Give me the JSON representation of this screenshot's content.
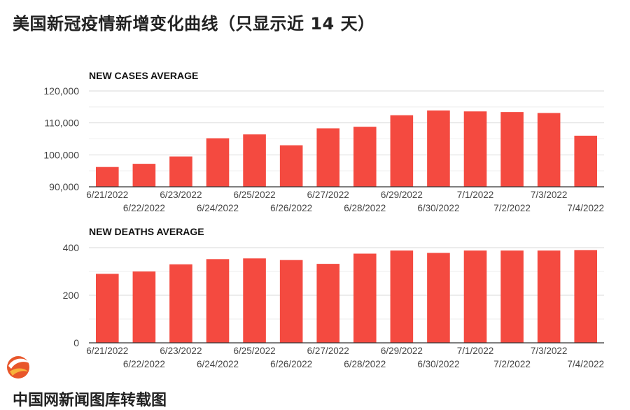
{
  "page": {
    "title": "美国新冠疫情新增变化曲线（只显示近 14 天）",
    "bottom_text": "中国网新闻图库转载图"
  },
  "colors": {
    "bar": "#f44a40",
    "grid": "#dddddd",
    "axis": "#333333"
  },
  "chart_data": [
    {
      "type": "bar",
      "title": "NEW CASES AVERAGE",
      "categories": [
        "6/21/2022",
        "6/22/2022",
        "6/23/2022",
        "6/24/2022",
        "6/25/2022",
        "6/26/2022",
        "6/27/2022",
        "6/28/2022",
        "6/29/2022",
        "6/30/2022",
        "7/1/2022",
        "7/2/2022",
        "7/3/2022",
        "7/4/2022"
      ],
      "values": [
        96200,
        97200,
        99500,
        105200,
        106400,
        103000,
        108300,
        108800,
        112400,
        113900,
        113600,
        113400,
        113100,
        106000
      ],
      "ylim": [
        90000,
        120000
      ],
      "yticks": [
        90000,
        100000,
        110000,
        120000
      ],
      "ytick_labels": [
        "90,000",
        "100,000",
        "110,000",
        "120,000"
      ],
      "grid": true
    },
    {
      "type": "bar",
      "title": "NEW DEATHS AVERAGE",
      "categories": [
        "6/21/2022",
        "6/22/2022",
        "6/23/2022",
        "6/24/2022",
        "6/25/2022",
        "6/26/2022",
        "6/27/2022",
        "6/28/2022",
        "6/29/2022",
        "6/30/2022",
        "7/1/2022",
        "7/2/2022",
        "7/3/2022",
        "7/4/2022"
      ],
      "values": [
        290,
        300,
        330,
        352,
        355,
        348,
        332,
        375,
        388,
        378,
        388,
        388,
        388,
        390
      ],
      "ylim": [
        0,
        400
      ],
      "yticks": [
        0,
        200,
        400
      ],
      "ytick_labels": [
        "0",
        "200",
        "400"
      ],
      "grid": true
    }
  ]
}
